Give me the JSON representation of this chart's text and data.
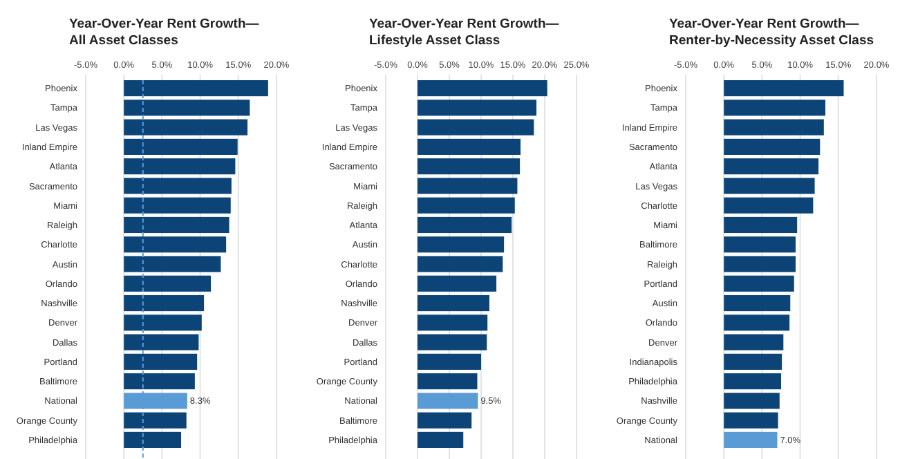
{
  "chart_data": [
    {
      "type": "bar",
      "orientation": "horizontal",
      "title": "Year-Over-Year Rent Growth—\nAll Asset Classes",
      "grid": "x",
      "categories": [
        "Phoenix",
        "Tampa",
        "Las Vegas",
        "Inland Empire",
        "Atlanta",
        "Sacramento",
        "Miami",
        "Raleigh",
        "Charlotte",
        "Austin",
        "Orlando",
        "Nashville",
        "Denver",
        "Dallas",
        "Portland",
        "Baltimore",
        "National",
        "Orange County",
        "Philadelphia"
      ],
      "values": [
        18.9,
        16.5,
        16.2,
        14.9,
        14.6,
        14.1,
        14.0,
        13.8,
        13.4,
        12.7,
        11.4,
        10.5,
        10.2,
        9.8,
        9.6,
        9.3,
        8.3,
        8.2,
        7.5
      ],
      "colors": [
        "#0d4477",
        "#0d4477",
        "#0d4477",
        "#0d4477",
        "#0d4477",
        "#0d4477",
        "#0d4477",
        "#0d4477",
        "#0d4477",
        "#0d4477",
        "#0d4477",
        "#0d4477",
        "#0d4477",
        "#0d4477",
        "#0d4477",
        "#0d4477",
        "#5b9bd5",
        "#0d4477",
        "#0d4477"
      ],
      "value_labels": [
        null,
        null,
        null,
        null,
        null,
        null,
        null,
        null,
        null,
        null,
        null,
        null,
        null,
        null,
        null,
        null,
        "8.3%",
        null,
        null
      ],
      "xlim": [
        -5,
        20
      ],
      "xticks": [
        {
          "value": -5,
          "label": "-5.0%"
        },
        {
          "value": 0,
          "label": "0.0%"
        },
        {
          "value": 5,
          "label": "5.0%"
        },
        {
          "value": 10,
          "label": "10.0%"
        },
        {
          "value": 15,
          "label": "15.0%"
        },
        {
          "value": 20,
          "label": "20.0%"
        }
      ],
      "ref_lines": [
        {
          "axis": "x",
          "value": 2.5,
          "color": "#5b9bd5",
          "line_style": "dashed"
        }
      ]
    },
    {
      "type": "bar",
      "orientation": "horizontal",
      "title": "Year-Over-Year Rent Growth—\nLifestyle Asset Class",
      "grid": "x",
      "categories": [
        "Phoenix",
        "Tampa",
        "Las Vegas",
        "Inland Empire",
        "Sacramento",
        "Miami",
        "Raleigh",
        "Atlanta",
        "Austin",
        "Charlotte",
        "Orlando",
        "Nashville",
        "Denver",
        "Dallas",
        "Portland",
        "Orange County",
        "National",
        "Baltimore",
        "Philadelphia"
      ],
      "values": [
        20.4,
        18.7,
        18.3,
        16.2,
        16.1,
        15.7,
        15.3,
        14.8,
        13.6,
        13.4,
        12.4,
        11.3,
        11.0,
        10.9,
        10.0,
        9.4,
        9.5,
        8.5,
        7.2
      ],
      "colors": [
        "#0d4477",
        "#0d4477",
        "#0d4477",
        "#0d4477",
        "#0d4477",
        "#0d4477",
        "#0d4477",
        "#0d4477",
        "#0d4477",
        "#0d4477",
        "#0d4477",
        "#0d4477",
        "#0d4477",
        "#0d4477",
        "#0d4477",
        "#0d4477",
        "#5b9bd5",
        "#0d4477",
        "#0d4477"
      ],
      "value_labels": [
        null,
        null,
        null,
        null,
        null,
        null,
        null,
        null,
        null,
        null,
        null,
        null,
        null,
        null,
        null,
        null,
        "9.5%",
        null,
        null
      ],
      "xlim": [
        -5,
        25
      ],
      "xticks": [
        {
          "value": -5,
          "label": "-5.0%"
        },
        {
          "value": 0,
          "label": "0.0%"
        },
        {
          "value": 5,
          "label": "5.0%"
        },
        {
          "value": 10,
          "label": "10.0%"
        },
        {
          "value": 15,
          "label": "15.0%"
        },
        {
          "value": 20,
          "label": "20.0%"
        },
        {
          "value": 25,
          "label": "25.0%"
        }
      ]
    },
    {
      "type": "bar",
      "orientation": "horizontal",
      "title": "Year-Over-Year Rent Growth—\nRenter-by-Necessity Asset Class",
      "grid": "x",
      "categories": [
        "Phoenix",
        "Tampa",
        "Inland Empire",
        "Sacramento",
        "Atlanta",
        "Las Vegas",
        "Charlotte",
        "Miami",
        "Baltimore",
        "Raleigh",
        "Portland",
        "Austin",
        "Orlando",
        "Denver",
        "Indianapolis",
        "Philadelphia",
        "Nashville",
        "Orange County",
        "National"
      ],
      "values": [
        15.7,
        13.3,
        13.1,
        12.6,
        12.4,
        11.9,
        11.7,
        9.6,
        9.4,
        9.4,
        9.2,
        8.7,
        8.6,
        7.8,
        7.6,
        7.5,
        7.3,
        7.1,
        7.0
      ],
      "colors": [
        "#0d4477",
        "#0d4477",
        "#0d4477",
        "#0d4477",
        "#0d4477",
        "#0d4477",
        "#0d4477",
        "#0d4477",
        "#0d4477",
        "#0d4477",
        "#0d4477",
        "#0d4477",
        "#0d4477",
        "#0d4477",
        "#0d4477",
        "#0d4477",
        "#0d4477",
        "#0d4477",
        "#5b9bd5"
      ],
      "value_labels": [
        null,
        null,
        null,
        null,
        null,
        null,
        null,
        null,
        null,
        null,
        null,
        null,
        null,
        null,
        null,
        null,
        null,
        null,
        "7.0%"
      ],
      "xlim": [
        -5,
        20
      ],
      "xticks": [
        {
          "value": -5,
          "label": "-5.0%"
        },
        {
          "value": 0,
          "label": "0.0%"
        },
        {
          "value": 5,
          "label": "5.0%"
        },
        {
          "value": 10,
          "label": "10.0%"
        },
        {
          "value": 15,
          "label": "15.0%"
        },
        {
          "value": 20,
          "label": "20.0%"
        }
      ]
    }
  ]
}
